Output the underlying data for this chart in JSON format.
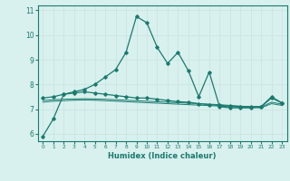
{
  "x": [
    0,
    1,
    2,
    3,
    4,
    5,
    6,
    7,
    8,
    9,
    10,
    11,
    12,
    13,
    14,
    15,
    16,
    17,
    18,
    19,
    20,
    21,
    22,
    23
  ],
  "line1": [
    5.9,
    6.6,
    7.6,
    7.7,
    7.8,
    8.0,
    8.3,
    8.6,
    9.3,
    10.75,
    10.5,
    9.5,
    8.85,
    9.3,
    8.55,
    7.5,
    8.5,
    7.1,
    7.05,
    7.05,
    7.05,
    7.1,
    7.5,
    7.25
  ],
  "line2": [
    7.45,
    7.5,
    7.6,
    7.65,
    7.7,
    7.65,
    7.6,
    7.55,
    7.5,
    7.45,
    7.45,
    7.4,
    7.35,
    7.3,
    7.28,
    7.22,
    7.18,
    7.15,
    7.12,
    7.1,
    7.1,
    7.1,
    7.45,
    7.25
  ],
  "line3": [
    7.35,
    7.38,
    7.4,
    7.41,
    7.42,
    7.41,
    7.4,
    7.38,
    7.36,
    7.34,
    7.32,
    7.3,
    7.28,
    7.26,
    7.24,
    7.22,
    7.2,
    7.18,
    7.15,
    7.12,
    7.1,
    7.08,
    7.28,
    7.2
  ],
  "line4": [
    7.28,
    7.32,
    7.34,
    7.36,
    7.37,
    7.36,
    7.34,
    7.32,
    7.3,
    7.28,
    7.26,
    7.24,
    7.22,
    7.2,
    7.18,
    7.16,
    7.14,
    7.12,
    7.1,
    7.08,
    7.06,
    7.05,
    7.22,
    7.15
  ],
  "line_color": "#1a7a6e",
  "bg_color": "#d8f0ee",
  "grid_color": "#c8e4e0",
  "xlabel": "Humidex (Indice chaleur)",
  "ylim": [
    5.7,
    11.2
  ],
  "xlim": [
    -0.5,
    23.5
  ],
  "yticks": [
    6,
    7,
    8,
    9,
    10,
    11
  ],
  "xticks": [
    0,
    1,
    2,
    3,
    4,
    5,
    6,
    7,
    8,
    9,
    10,
    11,
    12,
    13,
    14,
    15,
    16,
    17,
    18,
    19,
    20,
    21,
    22,
    23
  ]
}
